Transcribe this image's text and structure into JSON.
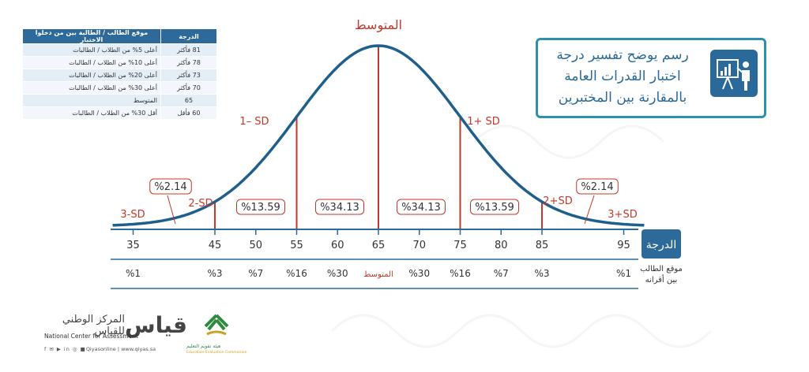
{
  "title": {
    "lines": [
      "رسم يوضح تفسير درجة",
      "اختبار القدرات العامة",
      "بالمقارنة بين المختبرين"
    ],
    "icon": "presentation-chart-icon"
  },
  "table": {
    "headers": {
      "score": "الدرجة",
      "position": "موقع الطالب / الطالبة بين من دخلوا الاختبار"
    },
    "rows": [
      {
        "score": "81 فأكثر",
        "position": "أعلى 5% من الطلاب / الطالبات"
      },
      {
        "score": "78 فأكثر",
        "position": "أعلى 10% من الطلاب / الطالبات"
      },
      {
        "score": "73 فأكثر",
        "position": "أعلى 20% من الطلاب / الطالبات"
      },
      {
        "score": "70 فأكثر",
        "position": "أعلى 30% من الطلاب / الطالبات"
      },
      {
        "score": "65",
        "position": "المتوسط"
      },
      {
        "score": "60 فأقل",
        "position": "أقل 30% من الطلاب / الطالبات"
      }
    ]
  },
  "chart_data": {
    "type": "area",
    "mean_label": "المتوسط",
    "sd_labels": [
      "3-SD",
      "2-SD",
      "1– SD",
      "1+ SD",
      "2+SD",
      "3+SD"
    ],
    "region_percents": [
      "%2.14",
      "%13.59",
      "%34.13",
      "%34.13",
      "%13.59",
      "%2.14"
    ],
    "scale": {
      "degree_label": "الدرجة",
      "position_label_lines": [
        "موقع الطالب",
        "بين أقرانه"
      ],
      "scores": [
        "35",
        "45",
        "50",
        "55",
        "60",
        "65",
        "70",
        "75",
        "80",
        "85",
        "95"
      ],
      "percentiles": [
        "%1",
        "%3",
        "%7",
        "%16",
        "%30",
        "المتوسط",
        "%30",
        "%16",
        "%7",
        "%3",
        "%1"
      ]
    },
    "mean": 65,
    "sd": 10,
    "xlim": [
      35,
      95
    ],
    "colors": {
      "curve": "#1f5f8b",
      "line": "#c0392b",
      "accent": "#2e6a99"
    }
  },
  "logos": {
    "qiyas_mark": "قياس",
    "qiyas_name": "المركز الوطني للقياس",
    "qiyas_en": "National Center for Assessment",
    "qiyas_social": "Qiyasonline | www.qiyas.sa",
    "eec_ar": "هيئة تقويم التعليم",
    "eec_en": "Education Evaluation Commission"
  }
}
